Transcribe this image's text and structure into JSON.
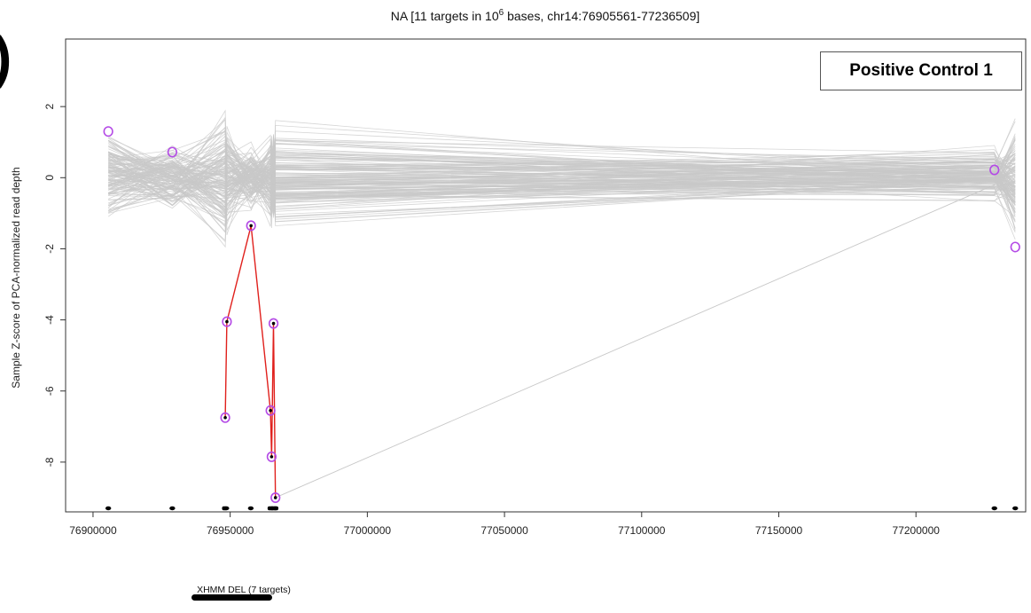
{
  "title_prefix": "NA [11 targets in 10",
  "title_exponent": "6",
  "title_suffix": " bases, chr14:76905561-77236509]",
  "panel_mark": ")",
  "control_label": "Positive Control 1",
  "colors": {
    "background_lines": "#c8c8c8",
    "highlight_line": "#e0201c",
    "circle": "#b44ae6",
    "point": "#000000"
  },
  "chart_data": {
    "type": "line",
    "xlabel": "",
    "ylabel": "Sample Z-score of PCA-normalized read depth",
    "xlim": [
      76890000,
      77240000
    ],
    "ylim": [
      -9.4,
      3.9
    ],
    "x_ticks": [
      "76900000",
      "76950000",
      "77000000",
      "77050000",
      "77100000",
      "77150000",
      "77200000"
    ],
    "y_ticks": [
      "2",
      "0",
      "-2",
      "-4",
      "-6",
      "-8"
    ],
    "background_series_note": "",
    "target_positions": [
      76905561,
      76928900,
      76948600,
      76957500,
      76965300,
      76966400,
      77228600,
      77236200
    ],
    "highlight_sample": {
      "points": [
        {
          "x": 76948200,
          "y": -6.75
        },
        {
          "x": 76948800,
          "y": -4.05
        },
        {
          "x": 76957600,
          "y": -1.35
        },
        {
          "x": 76964700,
          "y": -6.55
        },
        {
          "x": 76965100,
          "y": -7.85
        },
        {
          "x": 76965800,
          "y": -4.1
        },
        {
          "x": 76966500,
          "y": -9.0
        }
      ]
    },
    "circled_points": [
      {
        "x": 76905561,
        "y": 1.3
      },
      {
        "x": 76928900,
        "y": 0.72
      },
      {
        "x": 76948200,
        "y": -6.75
      },
      {
        "x": 76948800,
        "y": -4.05
      },
      {
        "x": 76957600,
        "y": -1.35
      },
      {
        "x": 76964700,
        "y": -6.55
      },
      {
        "x": 76965100,
        "y": -7.85
      },
      {
        "x": 76965800,
        "y": -4.1
      },
      {
        "x": 76966500,
        "y": -9.0
      },
      {
        "x": 77228600,
        "y": 0.22
      },
      {
        "x": 77236200,
        "y": -1.95
      }
    ],
    "cnv_call": {
      "label": "XHMM DEL (7 targets)",
      "start": 76948000,
      "end": 76967000
    }
  }
}
